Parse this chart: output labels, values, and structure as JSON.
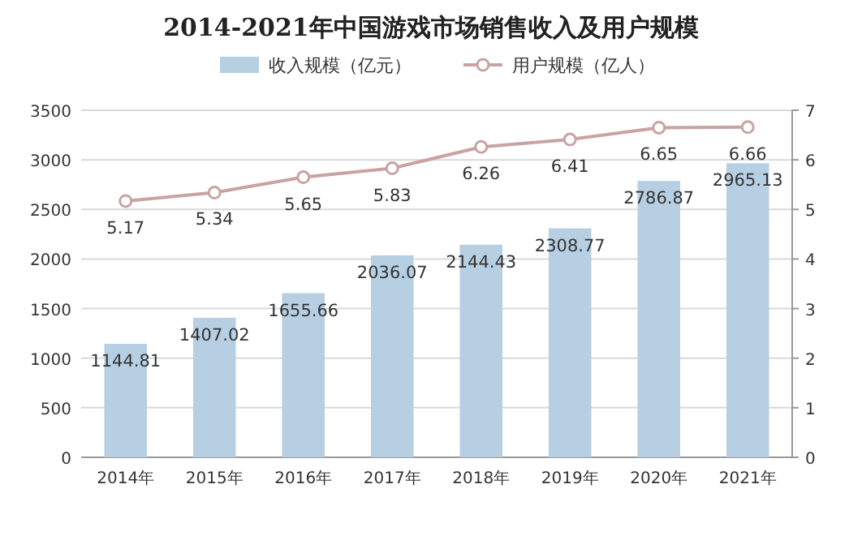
{
  "chart_data": {
    "type": "bar",
    "title": "2014-2021年中国游戏市场销售收入及用户规模",
    "categories": [
      "2014年",
      "2015年",
      "2016年",
      "2017年",
      "2018年",
      "2019年",
      "2020年",
      "2021年"
    ],
    "series": [
      {
        "name": "收入规模（亿元）",
        "color": "#b7cfe3",
        "values": [
          1144.81,
          1407.02,
          1655.66,
          2036.07,
          2144.43,
          2308.77,
          2786.87,
          2965.13
        ]
      },
      {
        "name": "用户规模（亿人）",
        "type": "line",
        "axis": "y2",
        "color": "#c9a3a3",
        "values": [
          5.17,
          5.34,
          5.65,
          5.83,
          6.26,
          6.41,
          6.65,
          6.66
        ]
      }
    ],
    "ylim": [
      0,
      3500
    ],
    "yticks": [
      0,
      500,
      1000,
      1500,
      2000,
      2500,
      3000,
      3500
    ],
    "y2lim": [
      0,
      7
    ],
    "y2ticks": [
      0,
      1,
      2,
      3,
      4,
      5,
      6,
      7
    ],
    "data_labels": true,
    "grid": "y",
    "legend": "top",
    "marker": "circle"
  }
}
